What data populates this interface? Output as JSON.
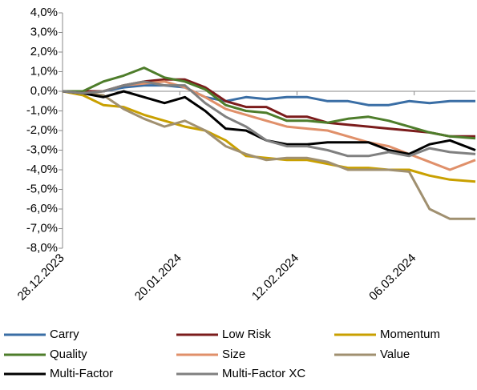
{
  "chart_data": {
    "type": "line",
    "x": [
      "28.12.2023",
      "01.01.2024",
      "05.01.2024",
      "09.01.2024",
      "13.01.2024",
      "17.01.2024",
      "21.01.2024",
      "25.01.2024",
      "29.01.2024",
      "02.02.2024",
      "06.02.2024",
      "10.02.2024",
      "14.02.2024",
      "18.02.2024",
      "22.02.2024",
      "26.02.2024",
      "01.03.2024",
      "05.03.2024",
      "09.03.2024",
      "13.03.2024",
      "18.03.2024"
    ],
    "xlim": [
      "28.12.2023",
      "18.03.2024"
    ],
    "xticks": [
      "28.12.2023",
      "20.01.2024",
      "12.02.2024",
      "06.03.2024"
    ],
    "ylim": [
      -8,
      4
    ],
    "yticks": [
      {
        "value": 4,
        "label": "4,0%"
      },
      {
        "value": 3,
        "label": "3,0%"
      },
      {
        "value": 2,
        "label": "2,0%"
      },
      {
        "value": 1,
        "label": "1,0%"
      },
      {
        "value": 0,
        "label": "0,0%"
      },
      {
        "value": -1,
        "label": "-1,0%"
      },
      {
        "value": -2,
        "label": "-2,0%"
      },
      {
        "value": -3,
        "label": "-3,0%"
      },
      {
        "value": -4,
        "label": "-4,0%"
      },
      {
        "value": -5,
        "label": "-5,0%"
      },
      {
        "value": -6,
        "label": "-6,0%"
      },
      {
        "value": -7,
        "label": "-7,0%"
      },
      {
        "value": -8,
        "label": "-8,0%"
      }
    ],
    "grid": false,
    "legend": "bottom",
    "series": [
      {
        "name": "Carry",
        "color": "#3a6ea5",
        "values": [
          0,
          0,
          0,
          0.2,
          0.3,
          0.3,
          0.2,
          -0.3,
          -0.5,
          -0.3,
          -0.4,
          -0.3,
          -0.3,
          -0.5,
          -0.5,
          -0.7,
          -0.7,
          -0.5,
          -0.6,
          -0.5,
          -0.5
        ]
      },
      {
        "name": "Low Risk",
        "color": "#7b1c1c",
        "values": [
          0,
          0,
          0,
          0.3,
          0.5,
          0.6,
          0.6,
          0.2,
          -0.5,
          -0.8,
          -0.8,
          -1.3,
          -1.3,
          -1.6,
          -1.7,
          -1.8,
          -1.9,
          -2.0,
          -2.1,
          -2.3,
          -2.3
        ]
      },
      {
        "name": "Momentum",
        "color": "#c9a000",
        "values": [
          0,
          -0.2,
          -0.7,
          -0.8,
          -1.2,
          -1.5,
          -1.8,
          -2.0,
          -2.5,
          -3.3,
          -3.4,
          -3.5,
          -3.5,
          -3.7,
          -3.9,
          -3.9,
          -4.0,
          -4.0,
          -4.3,
          -4.5,
          -4.6
        ]
      },
      {
        "name": "Quality",
        "color": "#4e7d2b",
        "values": [
          0,
          0,
          0.5,
          0.8,
          1.2,
          0.7,
          0.5,
          0.1,
          -0.7,
          -1.0,
          -1.1,
          -1.5,
          -1.5,
          -1.6,
          -1.4,
          -1.3,
          -1.5,
          -1.8,
          -2.1,
          -2.3,
          -2.4
        ]
      },
      {
        "name": "Size",
        "color": "#e0906a",
        "values": [
          0,
          -0.1,
          0,
          0.3,
          0.4,
          0.5,
          0.2,
          -0.3,
          -0.9,
          -1.2,
          -1.5,
          -1.8,
          -1.9,
          -2.0,
          -2.3,
          -2.6,
          -2.8,
          -3.2,
          -3.6,
          -4.0,
          -3.5
        ]
      },
      {
        "name": "Value",
        "color": "#a09070",
        "values": [
          0,
          -0.1,
          -0.2,
          -0.9,
          -1.4,
          -1.8,
          -1.5,
          -2.0,
          -2.8,
          -3.2,
          -3.5,
          -3.4,
          -3.4,
          -3.6,
          -4.0,
          -4.0,
          -4.0,
          -4.1,
          -6.0,
          -6.5,
          -6.5
        ]
      },
      {
        "name": "Multi-Factor",
        "color": "#000000",
        "values": [
          0,
          -0.1,
          -0.3,
          0,
          -0.3,
          -0.6,
          -0.3,
          -1.0,
          -1.9,
          -2.0,
          -2.5,
          -2.7,
          -2.7,
          -2.6,
          -2.6,
          -2.6,
          -3.0,
          -3.2,
          -2.7,
          -2.5,
          -3.0
        ]
      },
      {
        "name": "Multi-Factor XC",
        "color": "#808080",
        "values": [
          0,
          -0.1,
          0,
          0.3,
          0.5,
          0.3,
          0.3,
          -0.6,
          -1.3,
          -1.8,
          -2.5,
          -2.8,
          -2.8,
          -3.0,
          -3.3,
          -3.3,
          -3.1,
          -3.3,
          -2.9,
          -3.1,
          -3.2
        ]
      }
    ]
  }
}
